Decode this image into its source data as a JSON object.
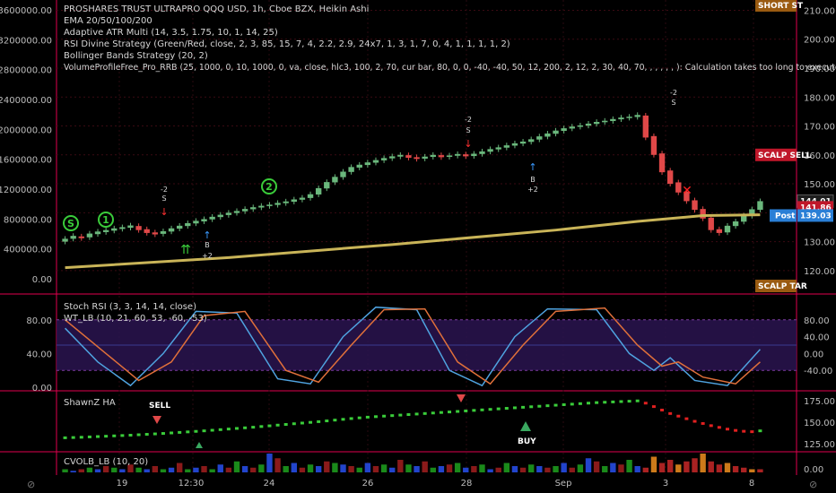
{
  "header": {
    "title": "PROSHARES TRUST ULTRAPRO QQQ USD, 1h, Cboe BZX, Heikin Ashi",
    "studies": [
      "EMA 20/50/100/200",
      "Adaptive ATR Multi (14, 3.5, 1.75, 10, 1, 14, 25)",
      "RSI Divine Strategy (Green/Red, close, 2, 3, 85, 15, 7, 4, 2.2, 2.9, 24x7, 1, 3, 1, 7, 0, 4, 1, 1, 1, 1, 2)",
      "Bollinger Bands Strategy (20, 2)",
      "VolumeProfileFree_Pro_RRB (25, 1000, 0, 10, 1000, 0, va, close, hlc3, 100, 2, 70, cur bar, 80, 0, 0, -40, -40, 50, 12, 200, 2, 12, 2, 30, 40, 70, , , , , , ): Calculation takes too long to execute (> 20000 ms)"
    ]
  },
  "colors": {
    "background": "#000000",
    "separator": "#e0004e",
    "bull": "#6ab77c",
    "bear": "#e04848",
    "ema_200": "#c9b458",
    "stoch_k": "#4fa3e0",
    "stoch_d": "#e0703a",
    "price_badge": "#3a7a4a",
    "badge_red": "#c0172a",
    "badge_blue": "#2a7fd6",
    "badge_orange": "#9a5a10"
  },
  "main_panel": {
    "left_axis_ticks": [
      "3600000.00",
      "3200000.00",
      "2800000.00",
      "2400000.00",
      "2000000.00",
      "1600000.00",
      "1200000.00",
      "800000.00",
      "400000.00",
      "0.00"
    ],
    "right_axis_ticks": [
      "210.00",
      "200.00",
      "190.00",
      "180.00",
      "170.00",
      "160.00",
      "150.00",
      "130.00",
      "120.00"
    ],
    "right_badges": [
      {
        "text": "SHORT ST",
        "value": 210.5,
        "color": "#9a5a10"
      },
      {
        "text": "SCALP SELL",
        "value": 160.0,
        "color": "#c0172a"
      },
      {
        "text": "144.01",
        "value": 144.01,
        "color": "#1e1e1e"
      },
      {
        "text": "141.86",
        "value": 141.86,
        "color": "#c0172a"
      },
      {
        "text": "139.03",
        "value": 139.03,
        "color": "#2a7fd6",
        "prefix": "Post"
      },
      {
        "text": "SCALP TAR",
        "value": 118.0,
        "color": "#9a5a10"
      }
    ],
    "markers": {
      "circle_labels": [
        "S",
        "1",
        "2"
      ],
      "signal_texts": [
        "-2",
        "S",
        "-2",
        "S",
        "-2",
        "S",
        "B",
        "+2",
        "B",
        "+2"
      ]
    }
  },
  "stoch_panel": {
    "label_1": "Stoch RSI (3, 3, 14, 14, close)",
    "label_2": "WT_LB (10, 21, 60, 53, -60, -53)",
    "left_ticks": [
      "80.00",
      "40.00",
      "0.00"
    ],
    "right_ticks": [
      "80.00",
      "40.00",
      "0.00",
      "-40.00"
    ]
  },
  "ha_panel": {
    "label": "ShawnZ HA",
    "right_ticks": [
      "175.00",
      "150.00",
      "125.00"
    ],
    "sell_label": "SELL",
    "buy_label": "BUY"
  },
  "vol_panel": {
    "label": "CVOLB_LB (10, 20)",
    "right_ticks": [
      "0.00"
    ]
  },
  "time_axis": {
    "ticks": [
      "19",
      "12:30",
      "24",
      "26",
      "28",
      "Sep",
      "3",
      "8"
    ]
  },
  "chart_data": {
    "type": "candlestick",
    "symbol": "PROSHARES TRUST ULTRAPRO QQQ USD",
    "interval": "1h",
    "right_axis_range": [
      115,
      212
    ],
    "heikin_ashi_candles": [
      {
        "o": 130.0,
        "c": 131.0
      },
      {
        "o": 131.0,
        "c": 132.0
      },
      {
        "o": 131.8,
        "c": 131.2
      },
      {
        "o": 131.5,
        "c": 132.8
      },
      {
        "o": 132.6,
        "c": 133.5
      },
      {
        "o": 133.3,
        "c": 134.0
      },
      {
        "o": 133.8,
        "c": 134.6
      },
      {
        "o": 134.4,
        "c": 135.0
      },
      {
        "o": 134.8,
        "c": 135.6
      },
      {
        "o": 135.4,
        "c": 134.0
      },
      {
        "o": 134.3,
        "c": 133.0
      },
      {
        "o": 133.2,
        "c": 132.5
      },
      {
        "o": 132.7,
        "c": 133.6
      },
      {
        "o": 133.5,
        "c": 134.6
      },
      {
        "o": 134.5,
        "c": 135.5
      },
      {
        "o": 135.4,
        "c": 136.4
      },
      {
        "o": 136.3,
        "c": 137.2
      },
      {
        "o": 137.0,
        "c": 137.8
      },
      {
        "o": 137.7,
        "c": 138.6
      },
      {
        "o": 138.5,
        "c": 139.3
      },
      {
        "o": 139.2,
        "c": 140.0
      },
      {
        "o": 139.9,
        "c": 140.6
      },
      {
        "o": 140.5,
        "c": 141.3
      },
      {
        "o": 141.2,
        "c": 141.9
      },
      {
        "o": 141.8,
        "c": 142.4
      },
      {
        "o": 142.3,
        "c": 142.8
      },
      {
        "o": 142.7,
        "c": 143.4
      },
      {
        "o": 143.3,
        "c": 143.9
      },
      {
        "o": 143.8,
        "c": 144.6
      },
      {
        "o": 144.5,
        "c": 145.2
      },
      {
        "o": 145.1,
        "c": 146.4
      },
      {
        "o": 146.3,
        "c": 148.5
      },
      {
        "o": 148.4,
        "c": 150.6
      },
      {
        "o": 150.5,
        "c": 152.4
      },
      {
        "o": 152.3,
        "c": 154.2
      },
      {
        "o": 154.1,
        "c": 155.8
      },
      {
        "o": 155.6,
        "c": 156.6
      },
      {
        "o": 156.5,
        "c": 157.4
      },
      {
        "o": 157.3,
        "c": 158.2
      },
      {
        "o": 158.1,
        "c": 158.9
      },
      {
        "o": 158.8,
        "c": 159.5
      },
      {
        "o": 159.4,
        "c": 160.0
      },
      {
        "o": 159.9,
        "c": 159.0
      },
      {
        "o": 159.2,
        "c": 158.6
      },
      {
        "o": 158.7,
        "c": 159.4
      },
      {
        "o": 159.3,
        "c": 160.0
      },
      {
        "o": 159.9,
        "c": 159.2
      },
      {
        "o": 159.3,
        "c": 159.8
      },
      {
        "o": 159.7,
        "c": 160.3
      },
      {
        "o": 160.2,
        "c": 159.5
      },
      {
        "o": 159.6,
        "c": 160.4
      },
      {
        "o": 160.3,
        "c": 161.2
      },
      {
        "o": 161.1,
        "c": 162.0
      },
      {
        "o": 161.9,
        "c": 162.6
      },
      {
        "o": 162.5,
        "c": 163.3
      },
      {
        "o": 163.2,
        "c": 164.0
      },
      {
        "o": 163.9,
        "c": 164.6
      },
      {
        "o": 164.5,
        "c": 165.4
      },
      {
        "o": 165.3,
        "c": 166.4
      },
      {
        "o": 166.3,
        "c": 167.4
      },
      {
        "o": 167.3,
        "c": 168.4
      },
      {
        "o": 168.3,
        "c": 169.2
      },
      {
        "o": 169.1,
        "c": 169.8
      },
      {
        "o": 169.7,
        "c": 170.2
      },
      {
        "o": 170.1,
        "c": 170.8
      },
      {
        "o": 170.7,
        "c": 171.4
      },
      {
        "o": 171.3,
        "c": 171.8
      },
      {
        "o": 171.7,
        "c": 172.4
      },
      {
        "o": 172.3,
        "c": 172.9
      },
      {
        "o": 172.8,
        "c": 173.2
      },
      {
        "o": 173.1,
        "c": 173.8
      },
      {
        "o": 173.6,
        "c": 166.0
      },
      {
        "o": 166.5,
        "c": 160.0
      },
      {
        "o": 160.5,
        "c": 154.0
      },
      {
        "o": 154.6,
        "c": 150.0
      },
      {
        "o": 150.5,
        "c": 147.0
      },
      {
        "o": 147.3,
        "c": 144.0
      },
      {
        "o": 144.3,
        "c": 141.0
      },
      {
        "o": 141.3,
        "c": 138.0
      },
      {
        "o": 138.3,
        "c": 134.0
      },
      {
        "o": 134.3,
        "c": 133.0
      },
      {
        "o": 133.2,
        "c": 135.5
      },
      {
        "o": 135.4,
        "c": 137.0
      },
      {
        "o": 136.9,
        "c": 139.0
      },
      {
        "o": 138.9,
        "c": 141.2
      },
      {
        "o": 141.0,
        "c": 144.0
      }
    ],
    "ema_200": [
      {
        "i": 0,
        "v": 121.0
      },
      {
        "i": 20,
        "v": 124.5
      },
      {
        "i": 40,
        "v": 129.0
      },
      {
        "i": 60,
        "v": 134.0
      },
      {
        "i": 70,
        "v": 137.0
      },
      {
        "i": 78,
        "v": 139.0
      },
      {
        "i": 85,
        "v": 139.3
      }
    ],
    "stoch_k": [
      {
        "i": 0,
        "v": 70
      },
      {
        "i": 4,
        "v": 30
      },
      {
        "i": 8,
        "v": 2
      },
      {
        "i": 12,
        "v": 40
      },
      {
        "i": 16,
        "v": 90
      },
      {
        "i": 21,
        "v": 88
      },
      {
        "i": 26,
        "v": 10
      },
      {
        "i": 30,
        "v": 4
      },
      {
        "i": 34,
        "v": 60
      },
      {
        "i": 38,
        "v": 95
      },
      {
        "i": 43,
        "v": 92
      },
      {
        "i": 47,
        "v": 20
      },
      {
        "i": 51,
        "v": 2
      },
      {
        "i": 55,
        "v": 60
      },
      {
        "i": 59,
        "v": 93
      },
      {
        "i": 65,
        "v": 92
      },
      {
        "i": 69,
        "v": 40
      },
      {
        "i": 72,
        "v": 20
      },
      {
        "i": 74,
        "v": 35
      },
      {
        "i": 77,
        "v": 8
      },
      {
        "i": 81,
        "v": 2
      },
      {
        "i": 85,
        "v": 45
      }
    ],
    "stoch_d": [
      {
        "i": 0,
        "v": 80
      },
      {
        "i": 5,
        "v": 40
      },
      {
        "i": 9,
        "v": 8
      },
      {
        "i": 13,
        "v": 30
      },
      {
        "i": 17,
        "v": 85
      },
      {
        "i": 22,
        "v": 90
      },
      {
        "i": 27,
        "v": 20
      },
      {
        "i": 31,
        "v": 6
      },
      {
        "i": 35,
        "v": 50
      },
      {
        "i": 39,
        "v": 92
      },
      {
        "i": 44,
        "v": 93
      },
      {
        "i": 48,
        "v": 30
      },
      {
        "i": 52,
        "v": 4
      },
      {
        "i": 56,
        "v": 50
      },
      {
        "i": 60,
        "v": 90
      },
      {
        "i": 66,
        "v": 94
      },
      {
        "i": 70,
        "v": 50
      },
      {
        "i": 73,
        "v": 25
      },
      {
        "i": 75,
        "v": 30
      },
      {
        "i": 78,
        "v": 12
      },
      {
        "i": 82,
        "v": 4
      },
      {
        "i": 85,
        "v": 30
      }
    ],
    "shawnz_ha": [
      132.0,
      132.3,
      132.6,
      133.0,
      133.4,
      133.8,
      134.2,
      134.6,
      135.0,
      135.5,
      136.0,
      136.5,
      137.0,
      137.6,
      138.2,
      138.8,
      139.4,
      140.0,
      140.7,
      141.4,
      142.1,
      142.8,
      143.5,
      144.2,
      145.0,
      145.8,
      146.6,
      147.4,
      148.2,
      149.0,
      149.8,
      150.6,
      151.5,
      152.4,
      153.3,
      154.2,
      155.0,
      155.8,
      156.4,
      157.0,
      157.6,
      158.2,
      158.8,
      159.4,
      160.0,
      160.6,
      161.2,
      161.8,
      162.4,
      163.0,
      163.6,
      164.2,
      164.8,
      165.4,
      166.0,
      166.6,
      167.2,
      167.8,
      168.4,
      169.0,
      169.6,
      170.2,
      170.8,
      171.4,
      172.0,
      172.6,
      173.0,
      173.4,
      173.8,
      174.2,
      174.6,
      172.0,
      168.0,
      164.0,
      160.0,
      157.0,
      154.0,
      151.0,
      148.5,
      146.0,
      144.0,
      142.0,
      140.5,
      139.5,
      139.0,
      140.0
    ],
    "volume": [
      2,
      1,
      2,
      3,
      2,
      4,
      3,
      2,
      5,
      3,
      2,
      4,
      2,
      3,
      6,
      2,
      3,
      4,
      2,
      5,
      3,
      7,
      4,
      3,
      5,
      12,
      9,
      4,
      6,
      3,
      5,
      4,
      7,
      6,
      5,
      4,
      3,
      6,
      4,
      5,
      3,
      8,
      5,
      4,
      7,
      3,
      4,
      5,
      6,
      3,
      4,
      5,
      2,
      3,
      6,
      4,
      3,
      5,
      4,
      3,
      4,
      6,
      3,
      5,
      9,
      7,
      4,
      6,
      5,
      8,
      4,
      3,
      10,
      6,
      8,
      5,
      7,
      9,
      12,
      7,
      5,
      6,
      4,
      3,
      2,
      2
    ]
  }
}
